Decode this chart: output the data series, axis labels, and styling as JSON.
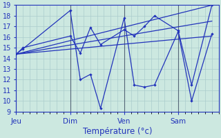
{
  "title": "Température (°c)",
  "background_color": "#cce8e0",
  "grid_color": "#aacccc",
  "line_color": "#2233bb",
  "x_tick_labels": [
    "Jeu",
    "Dim",
    "Ven",
    "Sam"
  ],
  "x_tick_positions": [
    0,
    32,
    64,
    96
  ],
  "ylim": [
    9,
    19
  ],
  "xlim": [
    0,
    120
  ],
  "yticks": [
    9,
    10,
    11,
    12,
    13,
    14,
    15,
    16,
    17,
    18,
    19
  ],
  "series_jagged1": {
    "x": [
      0,
      4,
      32,
      38,
      44,
      50,
      64,
      70,
      76,
      82,
      96,
      104,
      116
    ],
    "y": [
      14.4,
      14.9,
      18.5,
      12.0,
      12.5,
      9.3,
      17.8,
      11.5,
      11.3,
      11.5,
      16.5,
      10.0,
      16.3
    ]
  },
  "series_jagged2": {
    "x": [
      0,
      4,
      32,
      38,
      44,
      50,
      64,
      70,
      76,
      82,
      96,
      104,
      116
    ],
    "y": [
      14.4,
      15.0,
      16.1,
      14.5,
      16.9,
      15.3,
      16.7,
      16.1,
      17.0,
      18.0,
      16.6,
      11.5,
      19.0
    ]
  },
  "trend_lines": [
    {
      "x": [
        0,
        116
      ],
      "y": [
        14.4,
        19.0
      ]
    },
    {
      "x": [
        0,
        116
      ],
      "y": [
        14.4,
        17.5
      ]
    },
    {
      "x": [
        0,
        116
      ],
      "y": [
        14.4,
        16.1
      ]
    }
  ],
  "vlines": [
    0,
    32,
    64,
    96
  ]
}
